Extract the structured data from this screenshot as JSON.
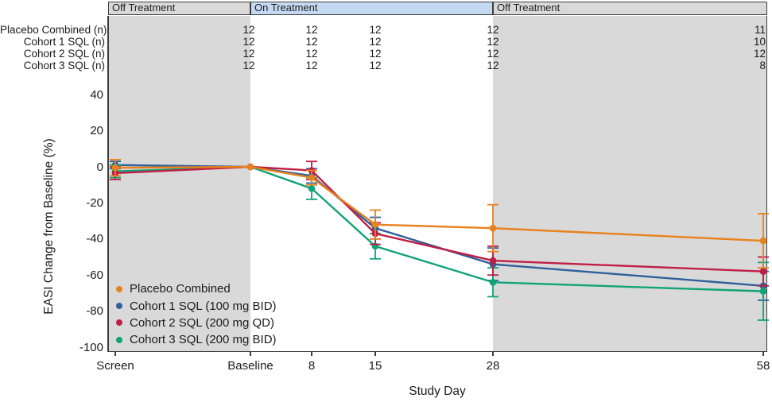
{
  "figure": {
    "phases": [
      {
        "label": "Off Treatment",
        "kind": "off"
      },
      {
        "label": "On Treatment",
        "kind": "on"
      },
      {
        "label": "Off Treatment",
        "kind": "off"
      }
    ],
    "n_table": {
      "row_labels": [
        "Placebo Combined (n)",
        "Cohort 1 SQL (n)",
        "Cohort 2 SQL (n)",
        "Cohort 3 SQL (n)"
      ],
      "columns": [
        "Baseline",
        "8",
        "15",
        "28",
        "58"
      ],
      "values": [
        [
          12,
          12,
          12,
          12,
          11
        ],
        [
          12,
          12,
          12,
          12,
          10
        ],
        [
          12,
          12,
          12,
          12,
          12
        ],
        [
          12,
          12,
          12,
          12,
          8
        ]
      ]
    },
    "colors": {
      "band_gray": "#d9d9d9",
      "band_blue": "#c6d9f2",
      "axis": "#3d3d3d"
    }
  },
  "chart_data": {
    "type": "line",
    "x": [
      "Screen",
      "Baseline",
      "8",
      "15",
      "28",
      "58"
    ],
    "xlabel": "Study Day",
    "ylabel": "EASI Change from Baseline (%)",
    "ylim": [
      -100,
      45
    ],
    "yticks": [
      40,
      20,
      0,
      -20,
      -40,
      -60,
      -80,
      -100
    ],
    "grid": false,
    "legend_position": "inside-bottom-left",
    "series": [
      {
        "name": "Placebo Combined",
        "color": "#e8821d",
        "values": [
          -0.5,
          0,
          -6,
          -32,
          -34,
          -41
        ],
        "err": [
          4.5,
          0,
          4,
          8,
          13,
          15
        ]
      },
      {
        "name": "Cohort 1 SQL (100 mg BID)",
        "color": "#2f609b",
        "values": [
          1,
          0,
          -5,
          -34,
          -54,
          -66
        ],
        "err": [
          2,
          0,
          4,
          6,
          9,
          8
        ]
      },
      {
        "name": "Cohort 2 SQL (200 mg QD)",
        "color": "#c01e45",
        "values": [
          -3.5,
          0,
          -2,
          -37,
          -52,
          -58
        ],
        "err": [
          3.5,
          0,
          5,
          6,
          8,
          8
        ]
      },
      {
        "name": "Cohort 3 SQL (200 mg BID)",
        "color": "#10a377",
        "values": [
          -2.5,
          0,
          -12,
          -44,
          -64,
          -69
        ],
        "err": [
          3.5,
          0,
          6,
          7,
          8,
          16
        ]
      }
    ]
  }
}
